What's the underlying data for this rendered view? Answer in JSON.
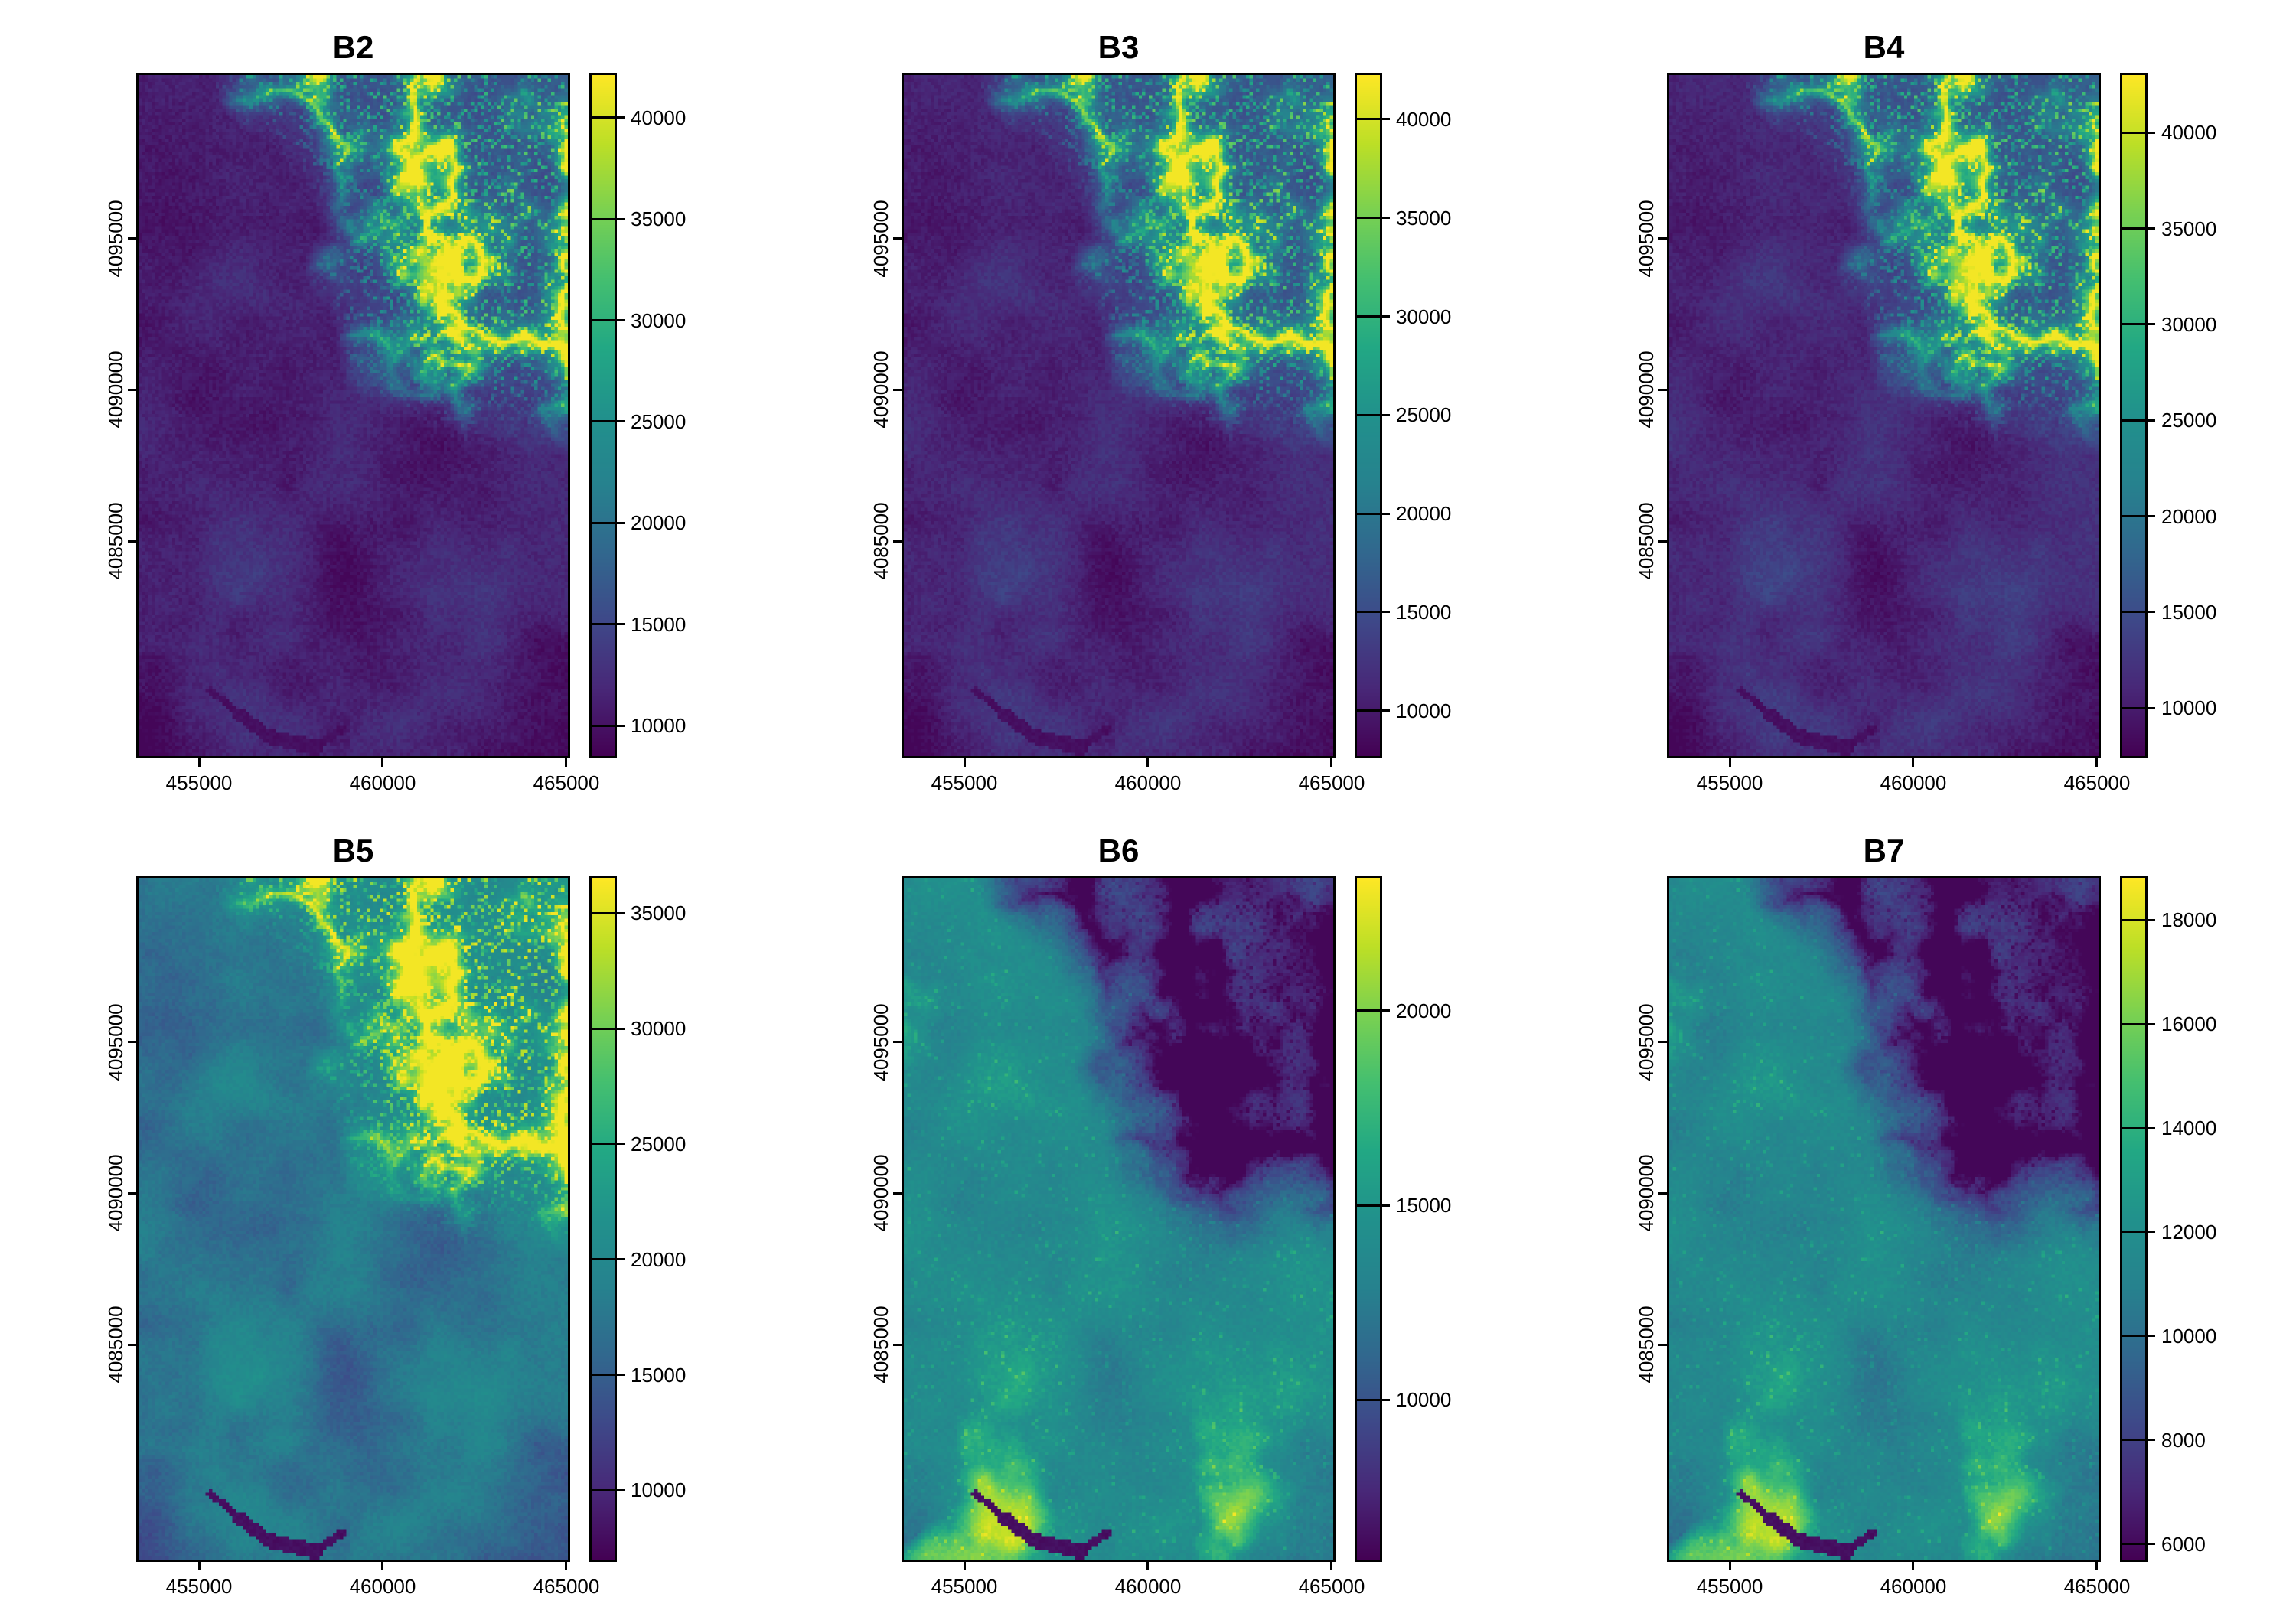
{
  "figure": {
    "background": "#ffffff",
    "text_color": "#000000",
    "frame_color": "#000000"
  },
  "chart_data": {
    "type": "heatmap",
    "description": "Grid of six single-band satellite raster maps (bands B2 to B7) rendered with the viridis colormap, each with its own vertical color scale bar",
    "grid": {
      "rows": 2,
      "cols": 3
    },
    "colormap": {
      "name": "viridis",
      "stops": [
        "#440154",
        "#482878",
        "#3e4989",
        "#31688e",
        "#26828e",
        "#21918c",
        "#22a884",
        "#44bf70",
        "#7ad151",
        "#bddf26",
        "#fde725"
      ]
    },
    "x_axis": {
      "range": [
        453354,
        465042
      ],
      "ticks": [
        455000,
        460000,
        465000
      ],
      "labels": [
        "455000",
        "460000",
        "465000"
      ]
    },
    "y_axis": {
      "range": [
        4077900,
        4100400
      ],
      "ticks": [
        4085000,
        4090000,
        4095000
      ],
      "labels": [
        "4085000",
        "4090000",
        "4095000"
      ]
    },
    "panels": [
      {
        "title": "B2",
        "colorbar": {
          "min": 8500,
          "max": 42100,
          "ticks": [
            10000,
            15000,
            20000,
            25000,
            30000,
            35000,
            40000
          ],
          "tick_labels": [
            "10000",
            "15000",
            "20000",
            "25000",
            "30000",
            "35000",
            "40000"
          ]
        },
        "render": {
          "base": 0.055,
          "amp": 0.105,
          "dendrite": "bright",
          "dend_base": 0.16,
          "dend_ridge": 0.92,
          "patches": 0,
          "lake": true,
          "grad": [
            0.6,
            0.7
          ]
        }
      },
      {
        "title": "B3",
        "colorbar": {
          "min": 7700,
          "max": 42250,
          "ticks": [
            10000,
            15000,
            20000,
            25000,
            30000,
            35000,
            40000
          ],
          "tick_labels": [
            "10000",
            "15000",
            "20000",
            "25000",
            "30000",
            "35000",
            "40000"
          ]
        },
        "render": {
          "base": 0.065,
          "amp": 0.115,
          "dendrite": "bright",
          "dend_base": 0.16,
          "dend_ridge": 0.92,
          "patches": 0,
          "lake": true,
          "grad": [
            0.6,
            0.7
          ]
        }
      },
      {
        "title": "B4",
        "colorbar": {
          "min": 7500,
          "max": 43000,
          "ticks": [
            10000,
            15000,
            20000,
            25000,
            30000,
            35000,
            40000
          ],
          "tick_labels": [
            "10000",
            "15000",
            "20000",
            "25000",
            "30000",
            "35000",
            "40000"
          ]
        },
        "render": {
          "base": 0.07,
          "amp": 0.125,
          "dendrite": "bright",
          "dend_base": 0.15,
          "dend_ridge": 0.9,
          "patches": 0,
          "lake": true,
          "grad": [
            0.6,
            0.7
          ]
        }
      },
      {
        "title": "B5",
        "colorbar": {
          "min": 7000,
          "max": 36500,
          "ticks": [
            10000,
            15000,
            20000,
            25000,
            30000,
            35000
          ],
          "tick_labels": [
            "10000",
            "15000",
            "20000",
            "25000",
            "30000",
            "35000"
          ]
        },
        "render": {
          "base": 0.3,
          "amp": 0.2,
          "dendrite": "bright",
          "dend_base": 0.13,
          "dend_ridge": 0.8,
          "patches": 0,
          "lake": true,
          "grad": [
            0.85,
            0.3
          ]
        }
      },
      {
        "title": "B6",
        "colorbar": {
          "min": 5900,
          "max": 23400,
          "ticks": [
            10000,
            15000,
            20000
          ],
          "tick_labels": [
            "10000",
            "15000",
            "20000"
          ]
        },
        "render": {
          "base": 0.42,
          "amp": 0.17,
          "dendrite": "dark",
          "dend_base": 0.3,
          "dend_ridge": 0.4,
          "patches": 0.55,
          "lake": true,
          "grad": [
            0.95,
            0.1
          ]
        }
      },
      {
        "title": "B7",
        "colorbar": {
          "min": 5700,
          "max": 18800,
          "ticks": [
            6000,
            8000,
            10000,
            12000,
            14000,
            16000,
            18000
          ],
          "tick_labels": [
            "6000",
            "8000",
            "10000",
            "12000",
            "14000",
            "16000",
            "18000"
          ]
        },
        "render": {
          "base": 0.4,
          "amp": 0.17,
          "dendrite": "dark",
          "dend_base": 0.29,
          "dend_ridge": 0.4,
          "patches": 0.55,
          "lake": true,
          "grad": [
            0.95,
            0.1
          ]
        }
      }
    ]
  }
}
